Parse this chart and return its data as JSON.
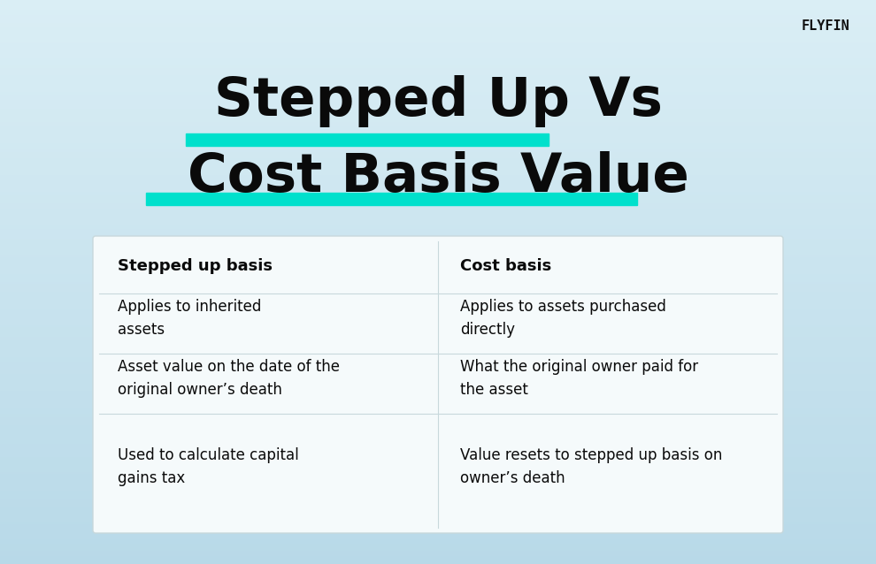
{
  "title_line1": "Stepped Up Vs",
  "title_line2": "Cost Basis Value",
  "title_fontsize": 44,
  "title_color": "#0a0a0a",
  "highlight_color": "#00e0cc",
  "brand": "FLYFIN",
  "brand_fontsize": 11,
  "brand_color": "#111111",
  "bg_color_tl": "#daeef5",
  "bg_color_br": "#b8d9e8",
  "table_bg": "#f5fafb",
  "table_border": "#c8d8dc",
  "col1_header": "Stepped up basis",
  "col2_header": "Cost basis",
  "header_fontsize": 13,
  "cell_fontsize": 12,
  "col1_rows": [
    "Applies to inherited\nassets",
    "Asset value on the date of the\noriginal owner’s death",
    "Used to calculate capital\ngains tax"
  ],
  "col2_rows": [
    "Applies to assets purchased\ndirectly",
    "What the original owner paid for\nthe asset",
    "Value resets to stepped up basis on\nowner’s death"
  ],
  "fig_w": 9.9,
  "fig_h": 6.38,
  "dpi": 100
}
